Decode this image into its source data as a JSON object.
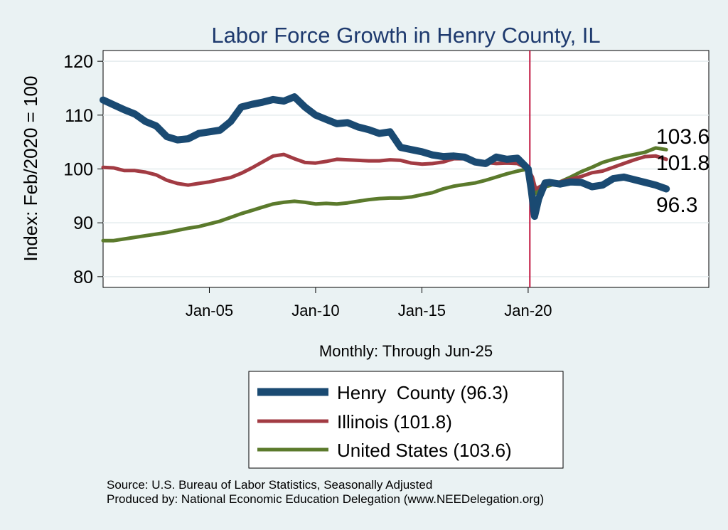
{
  "chart_data": {
    "type": "line",
    "title": "Labor Force Growth in Henry  County, IL",
    "ylabel": "Index: Feb/2020 = 100",
    "xlabel": "Monthly: Through Jun-25",
    "xlim": [
      2000.0,
      2028.5
    ],
    "ylim": [
      78,
      122
    ],
    "y_ticks": [
      80,
      90,
      100,
      110,
      120
    ],
    "x_ticks": [
      {
        "x": 2005.0,
        "label": "Jan-05"
      },
      {
        "x": 2010.0,
        "label": "Jan-10"
      },
      {
        "x": 2015.0,
        "label": "Jan-15"
      },
      {
        "x": 2020.0,
        "label": "Jan-20"
      }
    ],
    "vline": {
      "x": 2020.08,
      "color": "#c0143c"
    },
    "series": [
      {
        "name": "Henry County",
        "legend": "Henry  County (96.3)",
        "color": "#1a4a72",
        "end_label": "96.3",
        "points": [
          [
            2000.0,
            112.8
          ],
          [
            2000.5,
            111.9
          ],
          [
            2001.0,
            111.0
          ],
          [
            2001.5,
            110.2
          ],
          [
            2002.0,
            108.8
          ],
          [
            2002.5,
            108.0
          ],
          [
            2003.0,
            106.0
          ],
          [
            2003.5,
            105.4
          ],
          [
            2004.0,
            105.6
          ],
          [
            2004.5,
            106.6
          ],
          [
            2005.0,
            106.9
          ],
          [
            2005.5,
            107.2
          ],
          [
            2006.0,
            108.8
          ],
          [
            2006.5,
            111.5
          ],
          [
            2007.0,
            112.0
          ],
          [
            2007.5,
            112.4
          ],
          [
            2008.0,
            112.9
          ],
          [
            2008.5,
            112.6
          ],
          [
            2009.0,
            113.4
          ],
          [
            2009.5,
            111.5
          ],
          [
            2010.0,
            110.0
          ],
          [
            2010.5,
            109.2
          ],
          [
            2011.0,
            108.4
          ],
          [
            2011.5,
            108.6
          ],
          [
            2012.0,
            107.8
          ],
          [
            2012.5,
            107.3
          ],
          [
            2013.0,
            106.6
          ],
          [
            2013.5,
            106.9
          ],
          [
            2014.0,
            104.0
          ],
          [
            2014.5,
            103.6
          ],
          [
            2015.0,
            103.2
          ],
          [
            2015.5,
            102.6
          ],
          [
            2016.0,
            102.3
          ],
          [
            2016.5,
            102.4
          ],
          [
            2017.0,
            102.2
          ],
          [
            2017.5,
            101.3
          ],
          [
            2018.0,
            101.0
          ],
          [
            2018.5,
            102.2
          ],
          [
            2019.0,
            101.8
          ],
          [
            2019.5,
            102.0
          ],
          [
            2020.0,
            100.0
          ],
          [
            2020.15,
            96.0
          ],
          [
            2020.3,
            91.2
          ],
          [
            2020.5,
            94.5
          ],
          [
            2020.8,
            97.4
          ],
          [
            2021.0,
            97.5
          ],
          [
            2021.5,
            97.2
          ],
          [
            2022.0,
            97.6
          ],
          [
            2022.5,
            97.5
          ],
          [
            2023.0,
            96.7
          ],
          [
            2023.5,
            97.0
          ],
          [
            2024.0,
            98.2
          ],
          [
            2024.5,
            98.5
          ],
          [
            2025.0,
            98.0
          ],
          [
            2025.5,
            97.5
          ],
          [
            2026.0,
            97.0
          ],
          [
            2026.5,
            96.3
          ]
        ]
      },
      {
        "name": "Illinois",
        "legend": "Illinois (101.8)",
        "color": "#a23b43",
        "end_label": "101.8",
        "points": [
          [
            2000.0,
            100.3
          ],
          [
            2000.5,
            100.2
          ],
          [
            2001.0,
            99.7
          ],
          [
            2001.5,
            99.7
          ],
          [
            2002.0,
            99.4
          ],
          [
            2002.5,
            98.9
          ],
          [
            2003.0,
            97.9
          ],
          [
            2003.5,
            97.3
          ],
          [
            2004.0,
            97.0
          ],
          [
            2004.5,
            97.3
          ],
          [
            2005.0,
            97.6
          ],
          [
            2005.5,
            98.0
          ],
          [
            2006.0,
            98.4
          ],
          [
            2006.5,
            99.2
          ],
          [
            2007.0,
            100.2
          ],
          [
            2007.5,
            101.3
          ],
          [
            2008.0,
            102.4
          ],
          [
            2008.5,
            102.7
          ],
          [
            2009.0,
            101.9
          ],
          [
            2009.5,
            101.2
          ],
          [
            2010.0,
            101.1
          ],
          [
            2010.5,
            101.4
          ],
          [
            2011.0,
            101.8
          ],
          [
            2011.5,
            101.7
          ],
          [
            2012.0,
            101.6
          ],
          [
            2012.5,
            101.5
          ],
          [
            2013.0,
            101.5
          ],
          [
            2013.5,
            101.7
          ],
          [
            2014.0,
            101.6
          ],
          [
            2014.5,
            101.1
          ],
          [
            2015.0,
            100.9
          ],
          [
            2015.5,
            101.0
          ],
          [
            2016.0,
            101.3
          ],
          [
            2016.5,
            101.9
          ],
          [
            2017.0,
            101.9
          ],
          [
            2017.5,
            101.5
          ],
          [
            2018.0,
            101.2
          ],
          [
            2018.5,
            101.0
          ],
          [
            2019.0,
            101.1
          ],
          [
            2019.5,
            101.0
          ],
          [
            2020.0,
            100.0
          ],
          [
            2020.2,
            98.5
          ],
          [
            2020.35,
            96.3
          ],
          [
            2020.6,
            96.8
          ],
          [
            2021.0,
            97.2
          ],
          [
            2021.5,
            97.6
          ],
          [
            2022.0,
            98.1
          ],
          [
            2022.5,
            98.6
          ],
          [
            2023.0,
            99.3
          ],
          [
            2023.5,
            99.6
          ],
          [
            2024.0,
            100.3
          ],
          [
            2024.5,
            101.0
          ],
          [
            2025.0,
            101.7
          ],
          [
            2025.5,
            102.3
          ],
          [
            2026.0,
            102.4
          ],
          [
            2026.5,
            101.8
          ]
        ]
      },
      {
        "name": "United States",
        "legend": "United States (103.6)",
        "color": "#5b7a2c",
        "end_label": "103.6",
        "points": [
          [
            2000.0,
            86.7
          ],
          [
            2000.5,
            86.7
          ],
          [
            2001.0,
            87.0
          ],
          [
            2001.5,
            87.3
          ],
          [
            2002.0,
            87.6
          ],
          [
            2002.5,
            87.9
          ],
          [
            2003.0,
            88.2
          ],
          [
            2003.5,
            88.6
          ],
          [
            2004.0,
            89.0
          ],
          [
            2004.5,
            89.3
          ],
          [
            2005.0,
            89.8
          ],
          [
            2005.5,
            90.3
          ],
          [
            2006.0,
            91.0
          ],
          [
            2006.5,
            91.7
          ],
          [
            2007.0,
            92.3
          ],
          [
            2007.5,
            92.9
          ],
          [
            2008.0,
            93.5
          ],
          [
            2008.5,
            93.8
          ],
          [
            2009.0,
            94.0
          ],
          [
            2009.5,
            93.8
          ],
          [
            2010.0,
            93.5
          ],
          [
            2010.5,
            93.6
          ],
          [
            2011.0,
            93.5
          ],
          [
            2011.5,
            93.7
          ],
          [
            2012.0,
            94.0
          ],
          [
            2012.5,
            94.3
          ],
          [
            2013.0,
            94.5
          ],
          [
            2013.5,
            94.6
          ],
          [
            2014.0,
            94.6
          ],
          [
            2014.5,
            94.8
          ],
          [
            2015.0,
            95.2
          ],
          [
            2015.5,
            95.6
          ],
          [
            2016.0,
            96.3
          ],
          [
            2016.5,
            96.8
          ],
          [
            2017.0,
            97.1
          ],
          [
            2017.5,
            97.4
          ],
          [
            2018.0,
            97.9
          ],
          [
            2018.5,
            98.5
          ],
          [
            2019.0,
            99.1
          ],
          [
            2019.5,
            99.6
          ],
          [
            2020.0,
            100.0
          ],
          [
            2020.15,
            98.0
          ],
          [
            2020.3,
            95.3
          ],
          [
            2020.6,
            96.5
          ],
          [
            2021.0,
            96.9
          ],
          [
            2021.5,
            97.6
          ],
          [
            2022.0,
            98.5
          ],
          [
            2022.5,
            99.5
          ],
          [
            2023.0,
            100.3
          ],
          [
            2023.5,
            101.2
          ],
          [
            2024.0,
            101.8
          ],
          [
            2024.5,
            102.3
          ],
          [
            2025.0,
            102.7
          ],
          [
            2025.5,
            103.1
          ],
          [
            2026.0,
            103.9
          ],
          [
            2026.5,
            103.6
          ]
        ]
      }
    ]
  },
  "footer": {
    "source": "Source: U.S. Bureau of Labor Statistics, Seasonally Adjusted",
    "produced": "Produced by: National Economic Education Delegation (www.NEEDelegation.org)"
  }
}
